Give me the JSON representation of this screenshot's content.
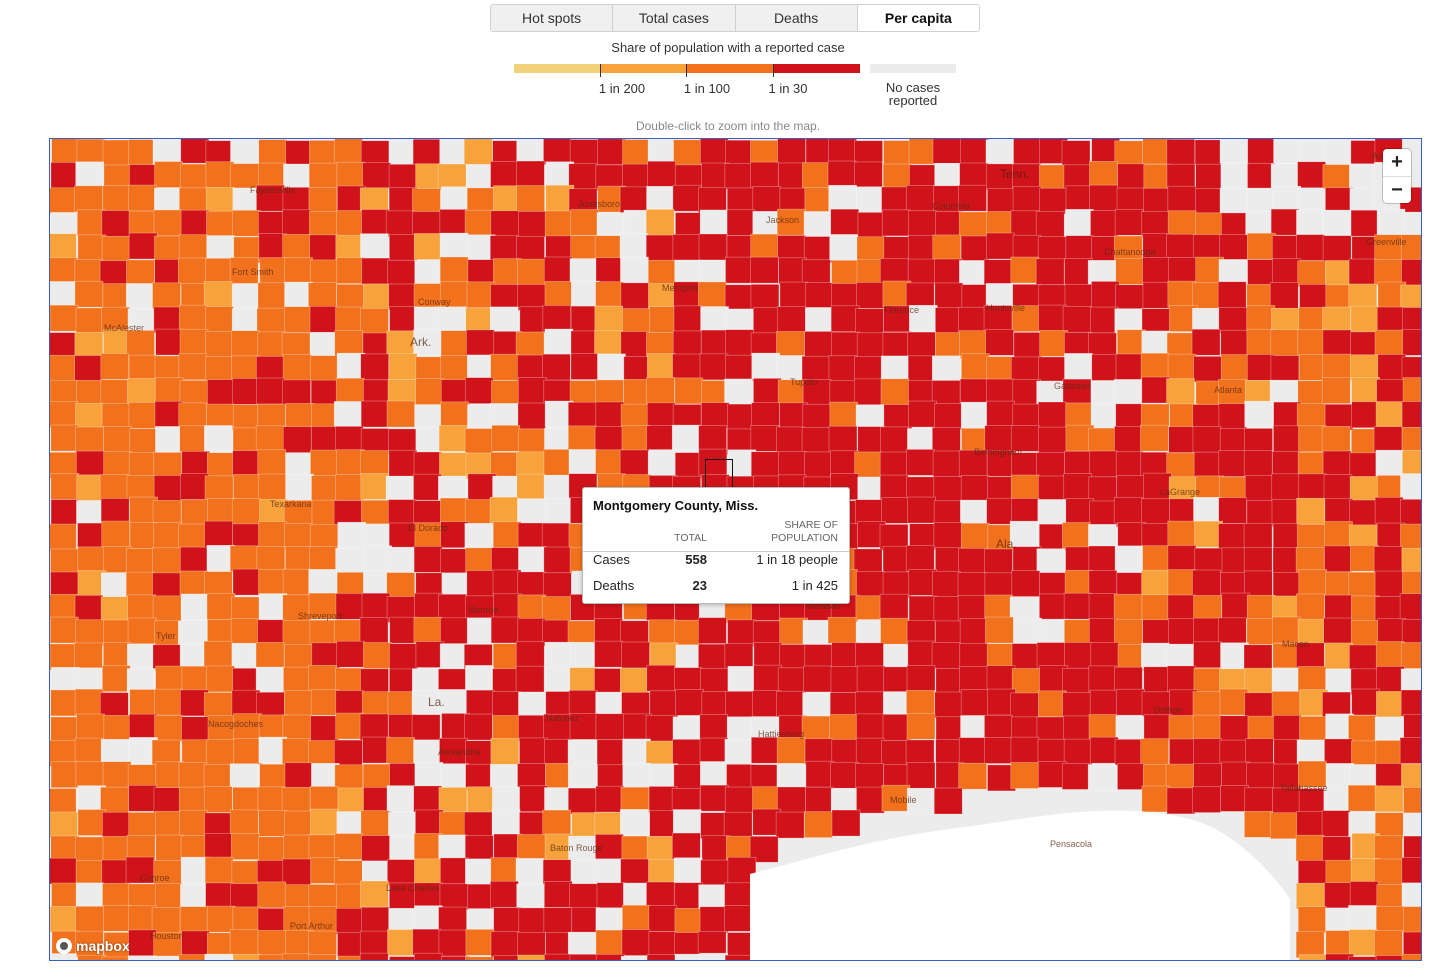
{
  "tabs": [
    {
      "label": "Hot spots",
      "active": false
    },
    {
      "label": "Total cases",
      "active": false
    },
    {
      "label": "Deaths",
      "active": false
    },
    {
      "label": "Per capita",
      "active": true
    }
  ],
  "legend": {
    "title": "Share of population with a reported case",
    "colors": [
      "#f0d27a",
      "#f7a23a",
      "#f2711c",
      "#d0131a"
    ],
    "no_case_color": "#ececec",
    "breaks": [
      "1 in 200",
      "1 in 100",
      "1 in 30"
    ],
    "no_cases_label_1": "No cases",
    "no_cases_label_2": "reported"
  },
  "map": {
    "hint": "Double-click to zoom into the map.",
    "zoom_in": "+",
    "zoom_out": "−",
    "attribution": "mapbox",
    "state_labels": [
      "Tenn.",
      "Ark.",
      "Ala.",
      "La."
    ],
    "place_labels": [
      "Fayetteville",
      "Jonesboro",
      "Jackson",
      "Columbia",
      "Fort Smith",
      "Conway",
      "Memphis",
      "Huntsville",
      "Florence",
      "McAlester",
      "Tupelo",
      "Gadsden",
      "Atlanta",
      "Birmingham",
      "Texarkana",
      "El Dorado",
      "LaGrange",
      "Tyler",
      "Shreveport",
      "Monroe",
      "Meridian",
      "Macon",
      "Nacogdoches",
      "Alexandria",
      "Natchez",
      "Hattiesburg",
      "Dothan",
      "Conroe",
      "Lake Charles",
      "Baton Rouge",
      "Mobile",
      "Tallahassee",
      "Port Arthur",
      "Houston",
      "Pensacola",
      "Asheville",
      "Chattanooga",
      "Greenville"
    ]
  },
  "tooltip": {
    "title": "Montgomery County, Miss.",
    "col_total": "TOTAL",
    "col_share_1": "SHARE OF",
    "col_share_2": "POPULATION",
    "rows": [
      {
        "label": "Cases",
        "total": "558",
        "share": "1 in 18 people"
      },
      {
        "label": "Deaths",
        "total": "23",
        "share": "1 in 425"
      }
    ]
  }
}
